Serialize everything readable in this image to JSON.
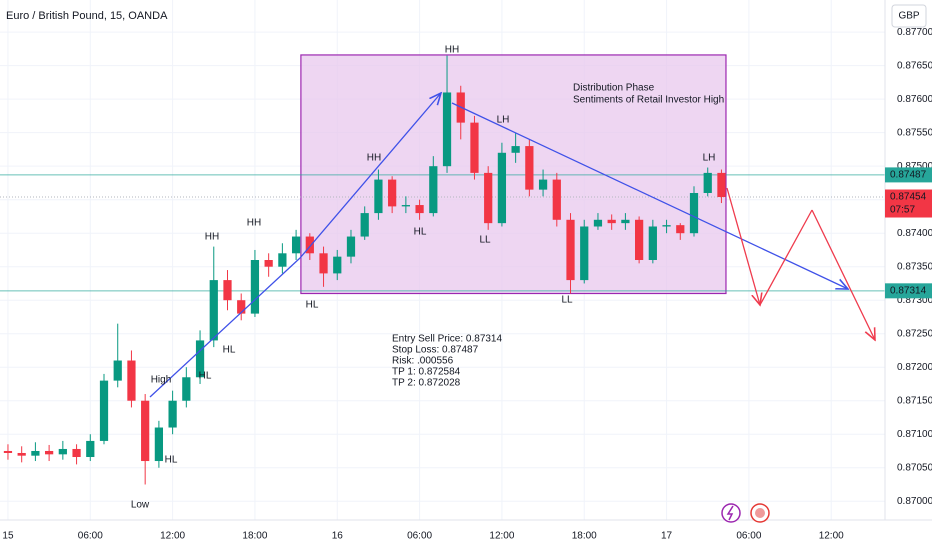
{
  "chart_data": {
    "type": "candlestick",
    "title": "Euro / British Pound, 15, OANDA",
    "currency": "GBP",
    "x": [
      0,
      1,
      2,
      3,
      4,
      5,
      6,
      7,
      8,
      9,
      10,
      11,
      12,
      13,
      14,
      15,
      16,
      17,
      18,
      19,
      20,
      21,
      22,
      23,
      24,
      25,
      26,
      27,
      28,
      29,
      30,
      31,
      32,
      33,
      34,
      35,
      36,
      37,
      38,
      39,
      40,
      41,
      42,
      43,
      44,
      45,
      46,
      47,
      48,
      49,
      50,
      51,
      52
    ],
    "open": [
      0.87075,
      0.87072,
      0.87068,
      0.87075,
      0.8707,
      0.87078,
      0.87066,
      0.8709,
      0.8718,
      0.8721,
      0.8715,
      0.8706,
      0.8711,
      0.8715,
      0.87185,
      0.8724,
      0.8733,
      0.873,
      0.8728,
      0.8736,
      0.8735,
      0.8737,
      0.87395,
      0.8737,
      0.8734,
      0.87365,
      0.87395,
      0.8743,
      0.8748,
      0.8744,
      0.87442,
      0.8743,
      0.875,
      0.8761,
      0.87565,
      0.8749,
      0.87415,
      0.8752,
      0.8753,
      0.87465,
      0.8748,
      0.8742,
      0.8733,
      0.8741,
      0.8742,
      0.87415,
      0.8742,
      0.8736,
      0.8741,
      0.87412,
      0.874,
      0.8746,
      0.8749
    ],
    "high": [
      0.87085,
      0.87082,
      0.87088,
      0.87084,
      0.8709,
      0.87085,
      0.871,
      0.8719,
      0.87265,
      0.87225,
      0.8716,
      0.8712,
      0.87165,
      0.872,
      0.87255,
      0.8738,
      0.87345,
      0.8731,
      0.87375,
      0.8737,
      0.87385,
      0.87405,
      0.874,
      0.8738,
      0.87375,
      0.87405,
      0.8744,
      0.87495,
      0.87485,
      0.87455,
      0.8745,
      0.87515,
      0.87665,
      0.8762,
      0.87575,
      0.875,
      0.87535,
      0.8755,
      0.8754,
      0.87495,
      0.8749,
      0.8743,
      0.8742,
      0.8743,
      0.87428,
      0.8743,
      0.87425,
      0.8742,
      0.8742,
      0.87415,
      0.8747,
      0.87498,
      0.87495
    ],
    "low": [
      0.87062,
      0.87058,
      0.8706,
      0.8706,
      0.87062,
      0.87055,
      0.8706,
      0.87085,
      0.8717,
      0.8714,
      0.87025,
      0.8705,
      0.871,
      0.8714,
      0.87175,
      0.8723,
      0.87285,
      0.8727,
      0.87275,
      0.87335,
      0.8734,
      0.8736,
      0.8736,
      0.8732,
      0.8733,
      0.87355,
      0.8739,
      0.8742,
      0.8743,
      0.8743,
      0.8742,
      0.87425,
      0.8749,
      0.8754,
      0.8748,
      0.87405,
      0.8741,
      0.87505,
      0.87455,
      0.87455,
      0.8741,
      0.8731,
      0.87325,
      0.87405,
      0.87405,
      0.87405,
      0.87355,
      0.87355,
      0.874,
      0.8739,
      0.87395,
      0.87455,
      0.87445
    ],
    "close": [
      0.87072,
      0.87068,
      0.87075,
      0.8707,
      0.87078,
      0.87066,
      0.8709,
      0.8718,
      0.8721,
      0.8715,
      0.8706,
      0.8711,
      0.8715,
      0.87185,
      0.8724,
      0.8733,
      0.873,
      0.8728,
      0.8736,
      0.8735,
      0.8737,
      0.87395,
      0.8737,
      0.8734,
      0.87365,
      0.87395,
      0.8743,
      0.8748,
      0.8744,
      0.87442,
      0.8743,
      0.875,
      0.8761,
      0.87565,
      0.8749,
      0.87415,
      0.8752,
      0.8753,
      0.87465,
      0.8748,
      0.8742,
      0.8733,
      0.8741,
      0.8742,
      0.87415,
      0.8742,
      0.8736,
      0.8741,
      0.87412,
      0.874,
      0.8746,
      0.8749,
      0.87454
    ],
    "up_color": "#089981",
    "down_color": "#f23645",
    "xlim": [
      -0.58,
      63.92
    ],
    "xticks": [
      {
        "value": 0,
        "label": "15"
      },
      {
        "value": 6,
        "label": "06:00"
      },
      {
        "value": 12,
        "label": "12:00"
      },
      {
        "value": 18,
        "label": "18:00"
      },
      {
        "value": 24,
        "label": "16"
      },
      {
        "value": 30,
        "label": "06:00"
      },
      {
        "value": 36,
        "label": "12:00"
      },
      {
        "value": 42,
        "label": "18:00"
      },
      {
        "value": 48,
        "label": "17"
      },
      {
        "value": 54,
        "label": "06:00"
      },
      {
        "value": 60,
        "label": "12:00"
      }
    ],
    "ylim": [
      0.86972,
      0.87748
    ],
    "yticks": [
      {
        "value": 0.87,
        "label": "0.87000"
      },
      {
        "value": 0.8705,
        "label": "0.87050"
      },
      {
        "value": 0.871,
        "label": "0.87100"
      },
      {
        "value": 0.8715,
        "label": "0.87150"
      },
      {
        "value": 0.872,
        "label": "0.87200"
      },
      {
        "value": 0.8725,
        "label": "0.87250"
      },
      {
        "value": 0.873,
        "label": "0.87300"
      },
      {
        "value": 0.8735,
        "label": "0.87350"
      },
      {
        "value": 0.874,
        "label": "0.87400"
      },
      {
        "value": 0.8745,
        "label": "0.87450"
      },
      {
        "value": 0.875,
        "label": "0.87500"
      },
      {
        "value": 0.8755,
        "label": "0.87550"
      },
      {
        "value": 0.876,
        "label": "0.87600"
      },
      {
        "value": 0.8765,
        "label": "0.87650"
      },
      {
        "value": 0.877,
        "label": "0.87700"
      }
    ],
    "grid": true,
    "price_lines": [
      {
        "value": 0.87487,
        "label": "0.87487",
        "color": "#26a69a",
        "style": "solid"
      },
      {
        "value": 0.87454,
        "label": "0.87454",
        "countdown": "07:57",
        "color": "#f23645",
        "style": "dotted"
      },
      {
        "value": 0.87314,
        "label": "0.87314",
        "color": "#26a69a",
        "style": "solid"
      }
    ],
    "box": {
      "x": [
        21.35,
        52.33
      ],
      "y": [
        0.8731,
        0.87666
      ],
      "color": "#e8c8ee"
    },
    "box_notes": [
      "Distribution Phase",
      "Sentiments of Retail Investor High"
    ],
    "labels": [
      "HH",
      "HH",
      "HH",
      "HH",
      "LH",
      "LH",
      "HL",
      "LL",
      "LL",
      "HL",
      "HL",
      "HL",
      "HL",
      "High",
      "Low"
    ],
    "trade_notes": [
      "Entry Sell Price: 0.87314",
      "Stop Loss: 0.87487",
      "Risk: .000556",
      "TP 1: 0.872584",
      "TP 2: 0.872028"
    ]
  }
}
